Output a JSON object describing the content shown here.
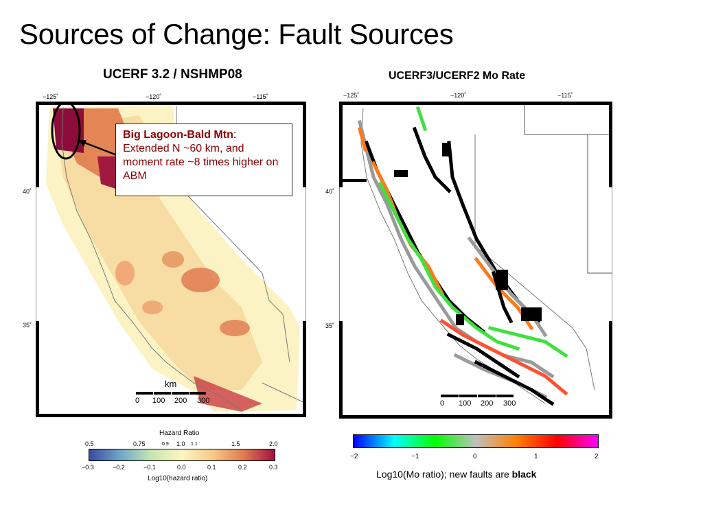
{
  "slide_title": "Sources of Change: Fault Sources",
  "left_panel": {
    "title": "UCERF 3.2 / NSHMP08",
    "lon_ticks": [
      "−125˚",
      "−120˚",
      "−115˚"
    ],
    "lat_ticks": [
      "40˚",
      "35˚"
    ],
    "scale_label": "km",
    "scale_ticks": [
      "0",
      "100",
      "200",
      "300"
    ],
    "callout_heading": "Big Lagoon-Bald Mtn",
    "callout_colon": ":",
    "callout_body": "Extended N ~60 km, and moment rate ~8 times higher on ABM",
    "colorbar": {
      "title": "Hazard Ratio",
      "top_ticks": [
        "0.5",
        "0.75",
        "0.9",
        "1.0",
        "1.1",
        "1.5",
        "2.0"
      ],
      "bottom_ticks": [
        "−0.3",
        "−0.2",
        "−0.1",
        "0.0",
        "0.1",
        "0.2",
        "0.3"
      ],
      "xlabel": "Log10(hazard ratio)",
      "colors": [
        "#3b4aa0",
        "#6fa7c9",
        "#c6e5b0",
        "#fbf6c0",
        "#f7c98a",
        "#e07b50",
        "#a01040"
      ]
    },
    "map_colors": {
      "low": "#fbf3c4",
      "mid": "#f3c08a",
      "high": "#e0764a",
      "peak": "#8c0d3a"
    }
  },
  "right_panel": {
    "title": "UCERF3/UCERF2 Mo Rate",
    "lon_ticks": [
      "−125˚",
      "−120˚",
      "−115˚"
    ],
    "lat_ticks": [
      "40˚",
      "35˚"
    ],
    "scale_ticks": [
      "0",
      "100",
      "200",
      "300"
    ],
    "colorbar": {
      "ticks": [
        "−2",
        "−1",
        "0",
        "1",
        "2"
      ],
      "colors": [
        "#0000ff",
        "#00ffff",
        "#00ff00",
        "#c0c0c0",
        "#ff8000",
        "#ff0000",
        "#ff00ff"
      ]
    },
    "legend_prefix": "Log10(Mo ratio); new faults are ",
    "legend_bold": "black"
  }
}
